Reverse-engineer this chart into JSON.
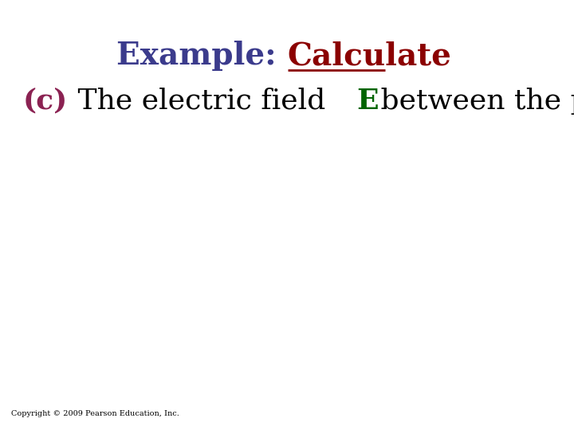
{
  "title_part1": "Example: ",
  "title_part2": "Calculate",
  "title_color1": "#3b3b8c",
  "title_color2": "#8b0000",
  "line1_parts": [
    {
      "text": "(c)",
      "color": "#8b2252",
      "bold": true
    },
    {
      "text": " The electric field ",
      "color": "#000000",
      "bold": false
    },
    {
      "text": "E",
      "color": "#006400",
      "bold": true
    },
    {
      "text": " between the plates.",
      "color": "#000000",
      "bold": false
    }
  ],
  "copyright": "Copyright © 2009 Pearson Education, Inc.",
  "bg_color": "#ffffff",
  "title_fontsize": 28,
  "body_fontsize": 26,
  "copyright_fontsize": 7
}
